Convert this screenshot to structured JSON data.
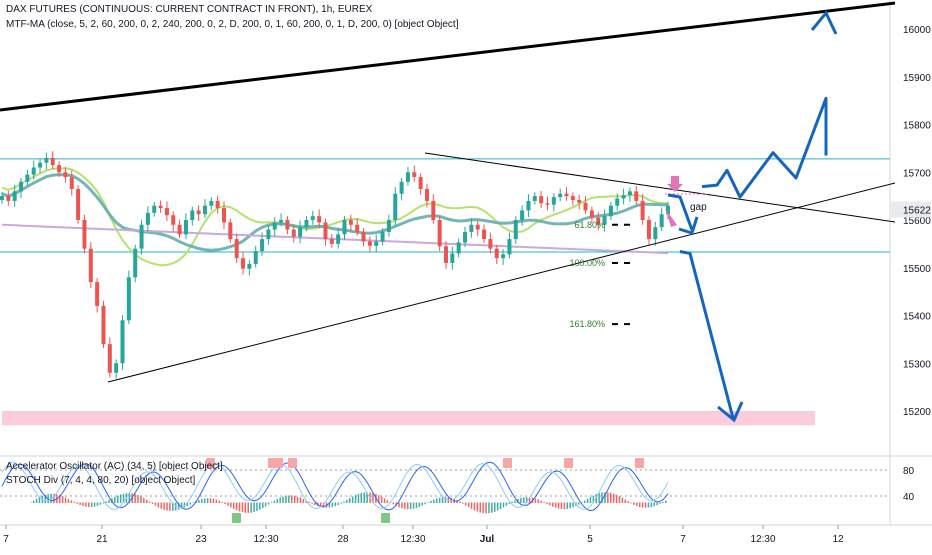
{
  "legend": {
    "title": "DAX FUTURES (CONTINUOUS: CURRENT CONTRACT IN FRONT), 1h, EUREX",
    "mtf_ma": "MTF-MA (close, 5, 2, 60, 200, 0, 2, 240, 200, 0, 2, D, 200, 0, 1, 60, 200, 0, 1, D, 200, 0) [object Object]",
    "accel_osc": "Accelerator Oscillator (AC) (34, 5) [object Object]",
    "stoch_div": "STOCH Div (7, 4, 4, 80, 20) [object Object]"
  },
  "colors": {
    "up_candle": "#26a69a",
    "down_candle": "#ef5350",
    "hline": "#1fb8d2",
    "trend": "#000000",
    "arrow": "#1565c0",
    "ma_light_green": "#b4e36c",
    "ma_teal": "#5aa9a8",
    "ma_lavender": "#c9a9de",
    "zone": "#f8bbd0",
    "gap_marker": "#e573b7",
    "fib": "#2e7d32"
  },
  "chart_data": [
    {
      "type": "candlestick",
      "title": "DAX FUTURES (CONTINUOUS: CURRENT CONTRACT IN FRONT), 1h, EUREX",
      "y_ticks": [
        15200,
        15300,
        15400,
        15500,
        15600,
        15700,
        15800,
        15900,
        16000
      ],
      "ylim": [
        15130,
        16060
      ],
      "current_price": 15622,
      "x_ticks": [
        "7",
        "21",
        "23",
        "12:30",
        "28",
        "12:30",
        "Jul",
        "5",
        "7",
        "12:30",
        "12"
      ],
      "horizontal_levels": [
        15728,
        15533
      ],
      "fib_levels": [
        {
          "label": "61.80%",
          "value": 15590
        },
        {
          "label": "100.00%",
          "value": 15510
        },
        {
          "label": "161.80%",
          "value": 15382
        }
      ],
      "annotation": "gap",
      "support_zone": [
        15170,
        15200
      ],
      "price_series": [
        15650,
        15640,
        15660,
        15680,
        15695,
        15710,
        15720,
        15730,
        15715,
        15700,
        15690,
        15665,
        15600,
        15540,
        15470,
        15420,
        15340,
        15280,
        15300,
        15390,
        15480,
        15540,
        15590,
        15615,
        15630,
        15625,
        15610,
        15590,
        15570,
        15600,
        15620,
        15612,
        15630,
        15640,
        15625,
        15595,
        15560,
        15520,
        15498,
        15508,
        15535,
        15560,
        15580,
        15595,
        15600,
        15580,
        15565,
        15585,
        15600,
        15608,
        15595,
        15560,
        15550,
        15570,
        15600,
        15590,
        15575,
        15555,
        15546,
        15555,
        15575,
        15600,
        15655,
        15680,
        15700,
        15690,
        15665,
        15640,
        15600,
        15545,
        15510,
        15530,
        15553,
        15575,
        15590,
        15580,
        15560,
        15540,
        15520,
        15528,
        15560,
        15600,
        15620,
        15640,
        15650,
        15635,
        15632,
        15648,
        15655,
        15650,
        15642,
        15636,
        15620,
        15605,
        15590,
        15608,
        15630,
        15645,
        15652,
        15660,
        15640,
        15600,
        15560,
        15585,
        15612,
        15630
      ],
      "projection_path": [
        15670,
        15673,
        15704,
        15648,
        15741,
        15688,
        15855,
        15735,
        16003,
        15985
      ],
      "projection_down": [
        15534,
        15530,
        15180,
        15210
      ]
    },
    {
      "type": "line",
      "title": "Accelerator Oscillator (AC) (34, 5) [object Object] / STOCH Div (7, 4, 4, 80, 20) [object Object]",
      "y_ticks": [
        40,
        80
      ],
      "ylim": [
        0,
        100
      ],
      "bull_markers": 2,
      "bear_markers": 9
    }
  ]
}
